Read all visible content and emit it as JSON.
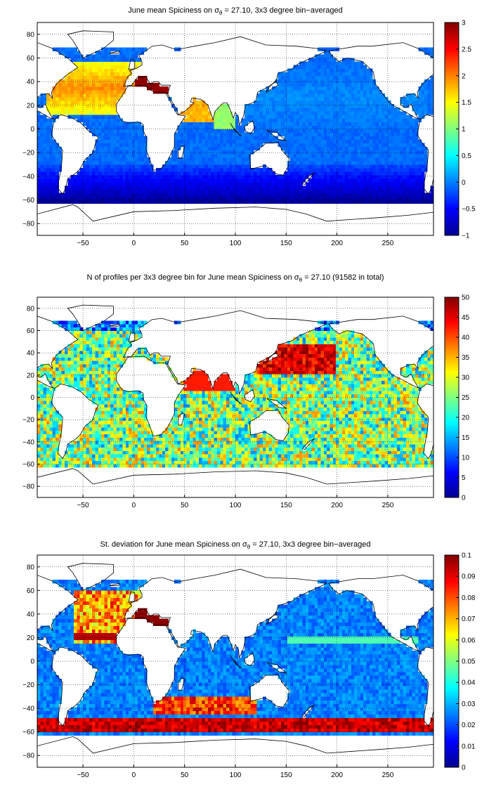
{
  "colors": {
    "land": "#ffffff",
    "coast": "#000000",
    "colormap": [
      "#00008f",
      "#0000ff",
      "#0080ff",
      "#00ffff",
      "#80ff80",
      "#ffff00",
      "#ff8000",
      "#ff0000",
      "#800000"
    ]
  },
  "chart_data": [
    {
      "type": "heatmap",
      "title_prefix": "June mean Spiciness on ",
      "title_sym": "σ",
      "title_sub": "θ",
      "title_suffix": " = 27.10, 3x3 degree bin−averaged",
      "xlim": [
        -95,
        295
      ],
      "ylim": [
        -90,
        90
      ],
      "xticks": [
        -50,
        0,
        50,
        100,
        150,
        200,
        250
      ],
      "xtick_labels": [
        "−50",
        "0",
        "50",
        "100",
        "150",
        "200",
        "250"
      ],
      "yticks": [
        80,
        60,
        40,
        20,
        0,
        -20,
        -40,
        -60,
        -80
      ],
      "ytick_labels": [
        "80",
        "60",
        "40",
        "20",
        "0",
        "−20",
        "−40",
        "−60",
        "−80"
      ],
      "grid": "dotted",
      "colorbar": {
        "range": [
          -1,
          3
        ],
        "ticks": [
          3,
          2.5,
          2,
          1.5,
          1,
          0.5,
          0,
          -0.5,
          -1
        ],
        "tick_labels": [
          "3",
          "2.5",
          "2",
          "1.5",
          "1",
          "0.5",
          "0",
          "−0.5",
          "−1"
        ]
      }
    },
    {
      "type": "heatmap",
      "title_prefix": "N of profiles per 3x3 degree bin for June mean Spiciness on ",
      "title_sym": "σ",
      "title_sub": "θ",
      "title_suffix": " = 27.10 (91582 in total)",
      "xlim": [
        -95,
        295
      ],
      "ylim": [
        -90,
        90
      ],
      "xticks": [
        -50,
        0,
        50,
        100,
        150,
        200,
        250
      ],
      "xtick_labels": [
        "−50",
        "0",
        "50",
        "100",
        "150",
        "200",
        "250"
      ],
      "yticks": [
        80,
        60,
        40,
        20,
        0,
        -20,
        -40,
        -60,
        -80
      ],
      "ytick_labels": [
        "80",
        "60",
        "40",
        "20",
        "0",
        "−20",
        "−40",
        "−60",
        "−80"
      ],
      "grid": "dotted",
      "colorbar": {
        "range": [
          0,
          50
        ],
        "ticks": [
          50,
          45,
          40,
          35,
          30,
          25,
          20,
          15,
          10,
          5,
          0
        ],
        "tick_labels": [
          "50",
          "45",
          "40",
          "35",
          "30",
          "25",
          "20",
          "15",
          "10",
          "5",
          "0"
        ]
      }
    },
    {
      "type": "heatmap",
      "title_prefix": "St. deviation for June mean Spiciness on ",
      "title_sym": "σ",
      "title_sub": "θ",
      "title_suffix": " = 27.10, 3x3 degree bin−averaged",
      "xlim": [
        -95,
        295
      ],
      "ylim": [
        -90,
        90
      ],
      "xticks": [
        -50,
        0,
        50,
        100,
        150,
        200,
        250
      ],
      "xtick_labels": [
        "−50",
        "0",
        "50",
        "100",
        "150",
        "200",
        "250"
      ],
      "yticks": [
        80,
        60,
        40,
        20,
        0,
        -20,
        -40,
        -60,
        -80
      ],
      "ytick_labels": [
        "80",
        "60",
        "40",
        "20",
        "0",
        "−20",
        "−40",
        "−60",
        "−80"
      ],
      "grid": "dotted",
      "colorbar": {
        "range": [
          0,
          0.1
        ],
        "ticks": [
          0.1,
          0.09,
          0.08,
          0.07,
          0.06,
          0.05,
          0.04,
          0.03,
          0.02,
          0.01,
          0
        ],
        "tick_labels": [
          "0.1",
          "0.09",
          "0.08",
          "0.07",
          "0.06",
          "0.05",
          "0.04",
          "0.03",
          "0.02",
          "0.01",
          "0"
        ]
      }
    }
  ]
}
